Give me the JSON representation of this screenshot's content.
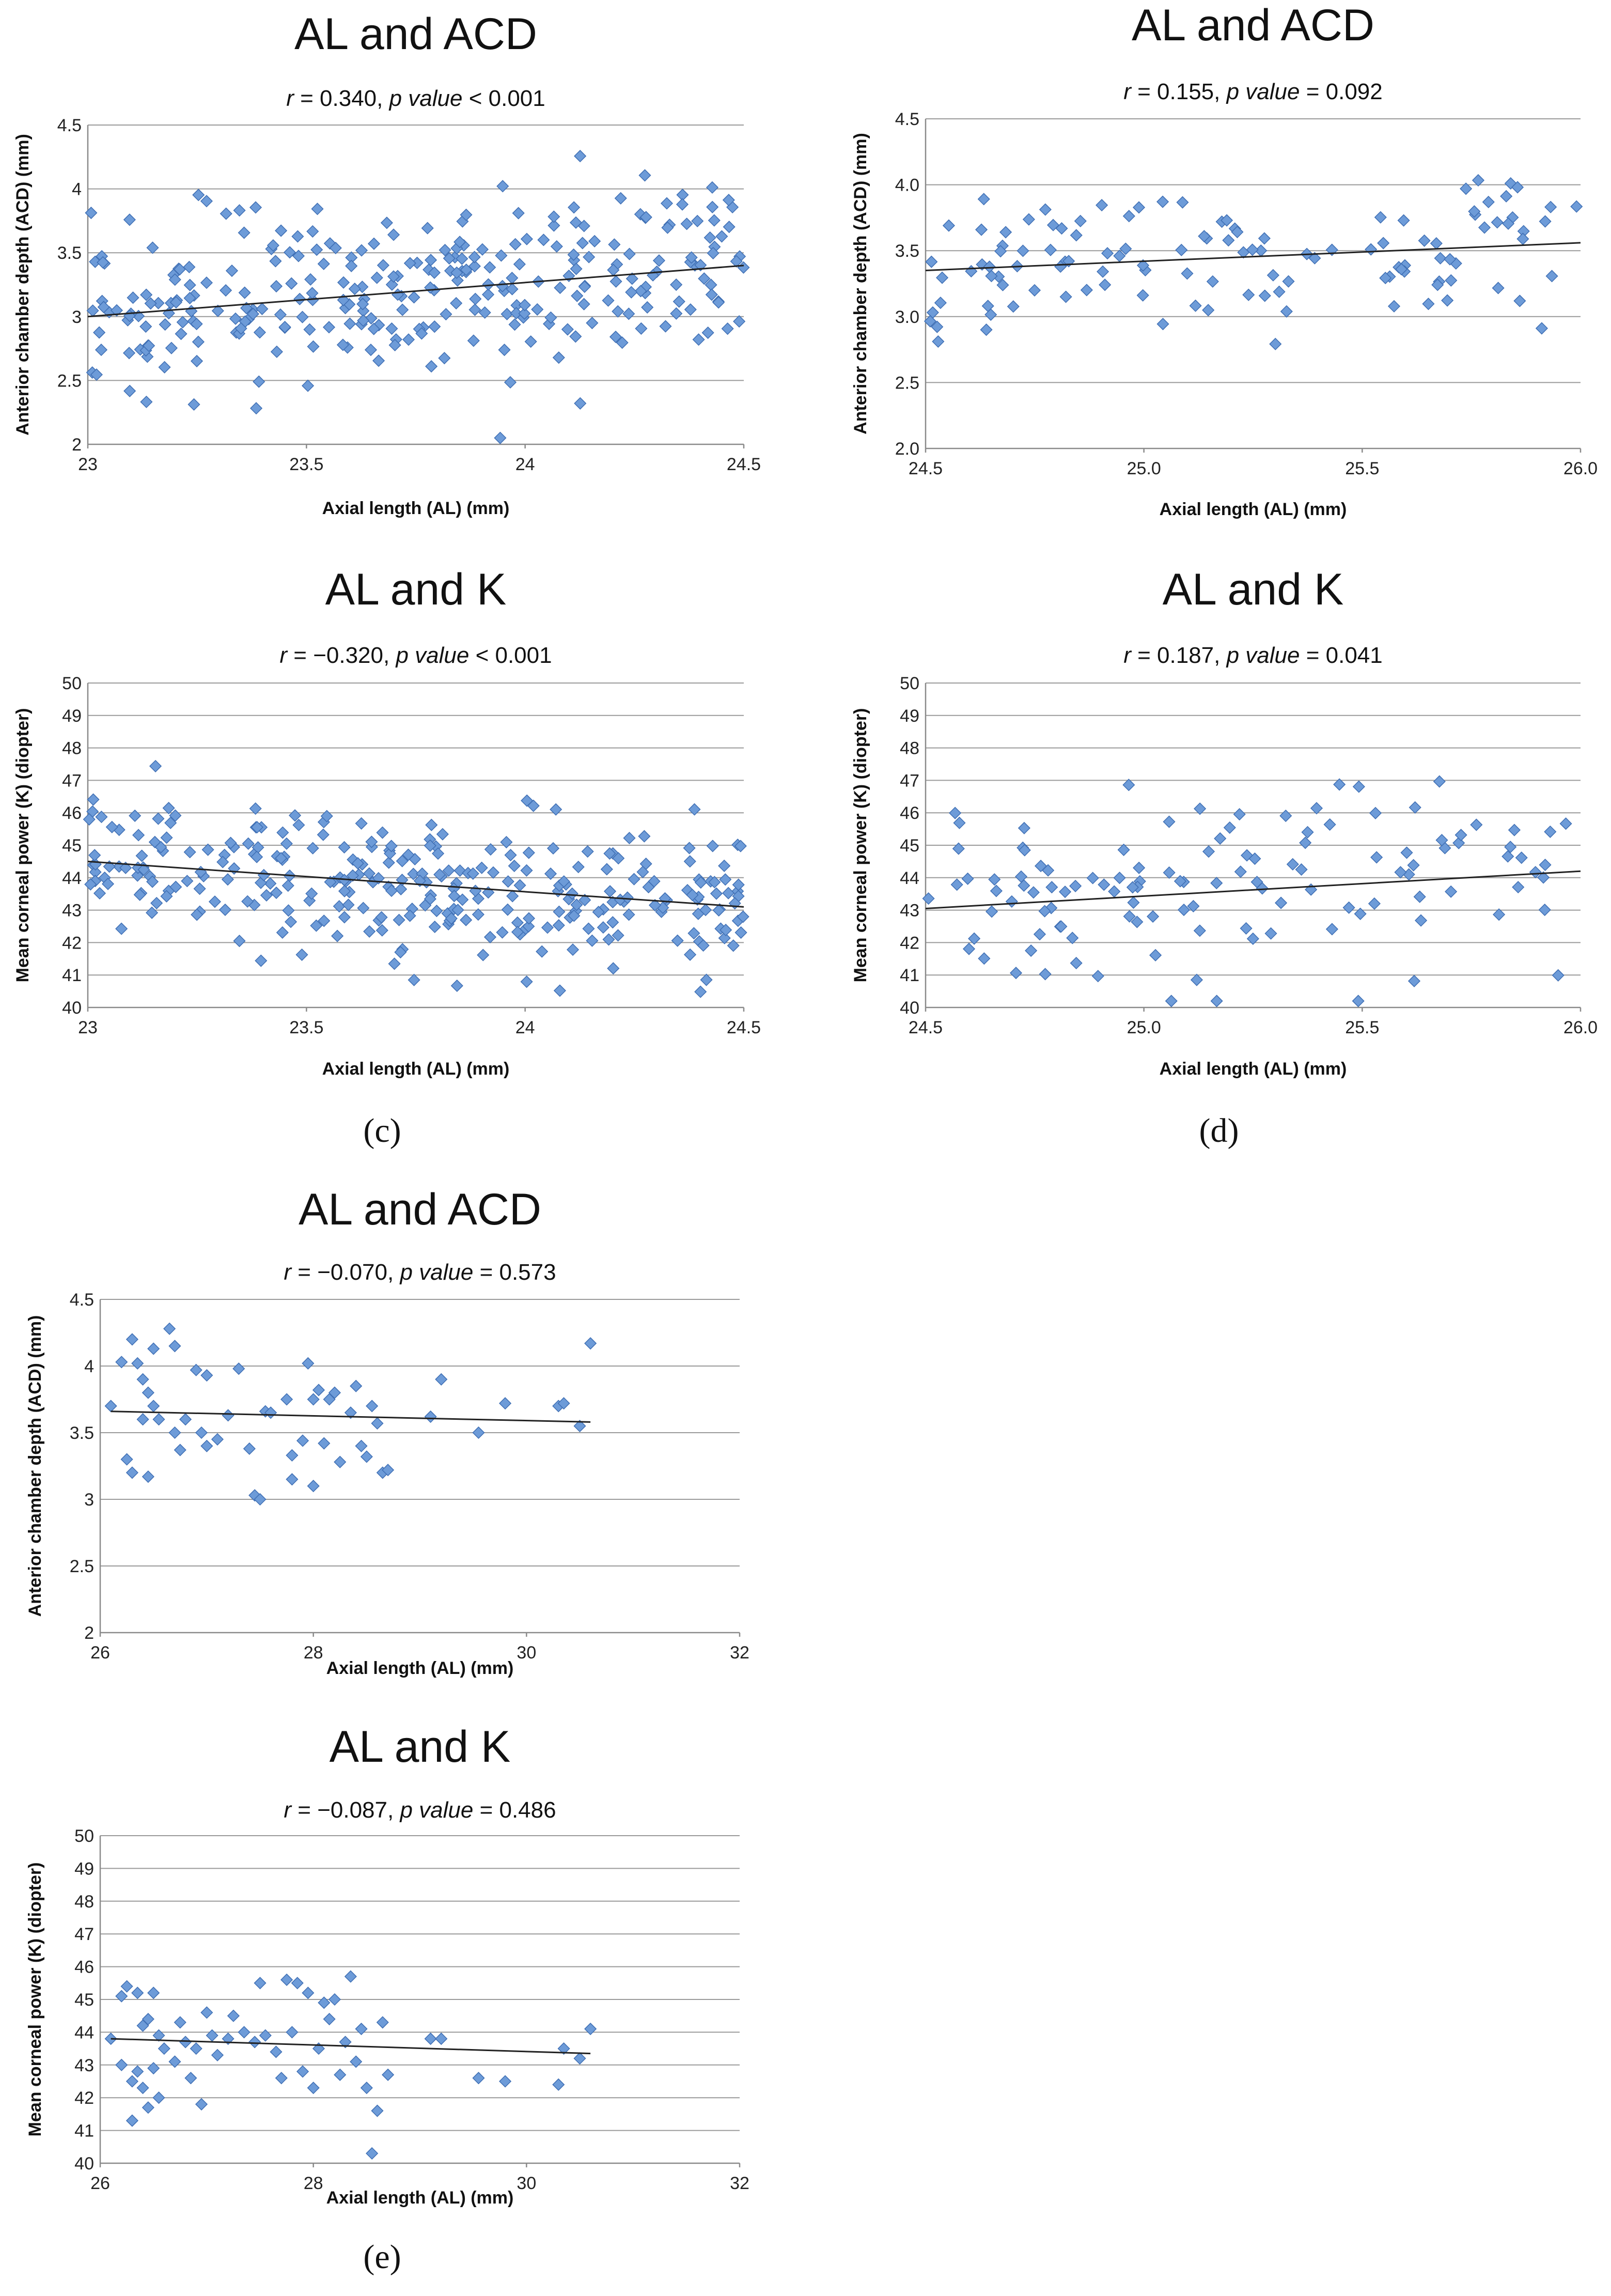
{
  "panel_labels": [
    "(c)",
    "(d)",
    "(e)"
  ],
  "chart_data": [
    {
      "type": "scatter",
      "title": "AL and ACD",
      "stats": {
        "r_label": "r",
        "r_text": " = 0.340,  ",
        "p_label": "p value",
        "p_text": " < 0.001"
      },
      "xlabel": "Axial length (AL) (mm)",
      "ylabel": "Anterior chamber depth (ACD) (mm)",
      "xlim": [
        23,
        24.5
      ],
      "ylim": [
        2,
        4.5
      ],
      "xticks": [
        23,
        23.5,
        24,
        24.5
      ],
      "xtick_labels": [
        "23",
        "23.5",
        "24",
        "24.5"
      ],
      "yticks": [
        2,
        2.5,
        3,
        3.5,
        4,
        4.5
      ],
      "ytick_labels": [
        "2",
        "2.5",
        "3",
        "3.5",
        "4",
        "4.5"
      ],
      "trendline": {
        "x": [
          23,
          24.5
        ],
        "y": [
          3.0,
          3.4
        ]
      },
      "n_points": 300,
      "seed": 11,
      "sd": 0.33
    },
    {
      "type": "scatter",
      "title": "AL and ACD",
      "stats": {
        "r_label": "r",
        "r_text": " = 0.155,  ",
        "p_label": "p value",
        "p_text": " = 0.092"
      },
      "xlabel": "Axial length (AL) (mm)",
      "ylabel": "Anterior chamber depth (ACD) (mm)",
      "xlim": [
        24.5,
        26.0
      ],
      "ylim": [
        2.0,
        4.5
      ],
      "xticks": [
        24.5,
        25.0,
        25.5,
        26.0
      ],
      "xtick_labels": [
        "24.5",
        "25.0",
        "25.5",
        "26.0"
      ],
      "yticks": [
        2.0,
        2.5,
        3.0,
        3.5,
        4.0,
        4.5
      ],
      "ytick_labels": [
        "2.0",
        "2.5",
        "3.0",
        "3.5",
        "4.0",
        "4.5"
      ],
      "trendline": {
        "x": [
          24.5,
          26.0
        ],
        "y": [
          3.35,
          3.56
        ]
      },
      "n_points": 120,
      "seed": 23,
      "sd": 0.3
    },
    {
      "type": "scatter",
      "title": "AL and K",
      "stats": {
        "r_label": "r",
        "r_text": " = −0.320,  ",
        "p_label": "p value",
        "p_text": " < 0.001"
      },
      "xlabel": "Axial length (AL) (mm)",
      "ylabel": "Mean corneal power (K) (diopter)",
      "xlim": [
        23,
        24.5
      ],
      "ylim": [
        40,
        50
      ],
      "xticks": [
        23,
        23.5,
        24,
        24.5
      ],
      "xtick_labels": [
        "23",
        "23.5",
        "24",
        "24.5"
      ],
      "yticks": [
        40,
        41,
        42,
        43,
        44,
        45,
        46,
        47,
        48,
        49,
        50
      ],
      "ytick_labels": [
        "40",
        "41",
        "42",
        "43",
        "44",
        "45",
        "46",
        "47",
        "48",
        "49",
        "50"
      ],
      "trendline": {
        "x": [
          23,
          24.5
        ],
        "y": [
          44.5,
          43.1
        ]
      },
      "n_points": 300,
      "seed": 37,
      "sd": 1.1
    },
    {
      "type": "scatter",
      "title": "AL and K",
      "stats": {
        "r_label": "r",
        "r_text": " = 0.187,  ",
        "p_label": "p value",
        "p_text": " = 0.041"
      },
      "xlabel": "Axial length (AL) (mm)",
      "ylabel": "Mean corneal power (K) (diopter)",
      "xlim": [
        24.5,
        26.0
      ],
      "ylim": [
        40,
        50
      ],
      "xticks": [
        24.5,
        25.0,
        25.5,
        26.0
      ],
      "xtick_labels": [
        "24.5",
        "25.0",
        "25.5",
        "26.0"
      ],
      "yticks": [
        40,
        41,
        42,
        43,
        44,
        45,
        46,
        47,
        48,
        49,
        50
      ],
      "ytick_labels": [
        "40",
        "41",
        "42",
        "43",
        "44",
        "45",
        "46",
        "47",
        "48",
        "49",
        "50"
      ],
      "trendline": {
        "x": [
          24.5,
          26.0
        ],
        "y": [
          43.05,
          44.2
        ]
      },
      "n_points": 120,
      "seed": 53,
      "sd": 1.45
    },
    {
      "type": "scatter",
      "title": "AL and ACD",
      "stats": {
        "r_label": "r",
        "r_text": " = −0.070,  ",
        "p_label": "p value",
        "p_text": " = 0.573"
      },
      "xlabel": "Axial length (AL) (mm)",
      "ylabel": "Anterior chamber depth (ACD) (mm)",
      "xlim": [
        26,
        32
      ],
      "ylim": [
        2,
        4.5
      ],
      "xticks": [
        26,
        28,
        30,
        32
      ],
      "xtick_labels": [
        "26",
        "28",
        "30",
        "32"
      ],
      "yticks": [
        2,
        2.5,
        3,
        3.5,
        4,
        4.5
      ],
      "ytick_labels": [
        "2",
        "2.5",
        "3",
        "3.5",
        "4",
        "4.5"
      ],
      "trendline": {
        "x": [
          26.1,
          30.6
        ],
        "y": [
          3.66,
          3.58
        ]
      },
      "points": [
        [
          26.1,
          3.7
        ],
        [
          26.2,
          4.03
        ],
        [
          26.25,
          3.3
        ],
        [
          26.3,
          4.2
        ],
        [
          26.3,
          3.2
        ],
        [
          26.35,
          4.02
        ],
        [
          26.4,
          3.9
        ],
        [
          26.4,
          3.6
        ],
        [
          26.45,
          3.8
        ],
        [
          26.45,
          3.17
        ],
        [
          26.5,
          4.13
        ],
        [
          26.5,
          3.7
        ],
        [
          26.55,
          3.6
        ],
        [
          26.65,
          4.28
        ],
        [
          26.7,
          4.15
        ],
        [
          26.7,
          3.5
        ],
        [
          26.75,
          3.37
        ],
        [
          26.8,
          3.6
        ],
        [
          26.9,
          3.97
        ],
        [
          26.95,
          3.5
        ],
        [
          27.0,
          3.93
        ],
        [
          27.0,
          3.4
        ],
        [
          27.1,
          3.45
        ],
        [
          27.2,
          3.63
        ],
        [
          27.3,
          3.98
        ],
        [
          27.4,
          3.38
        ],
        [
          27.45,
          3.03
        ],
        [
          27.5,
          3.0
        ],
        [
          27.55,
          3.66
        ],
        [
          27.6,
          3.65
        ],
        [
          27.75,
          3.75
        ],
        [
          27.8,
          3.33
        ],
        [
          27.8,
          3.15
        ],
        [
          27.9,
          3.44
        ],
        [
          27.95,
          4.02
        ],
        [
          28.0,
          3.75
        ],
        [
          28.0,
          3.1
        ],
        [
          28.05,
          3.82
        ],
        [
          28.1,
          3.42
        ],
        [
          28.15,
          3.75
        ],
        [
          28.2,
          3.8
        ],
        [
          28.25,
          3.28
        ],
        [
          28.35,
          3.65
        ],
        [
          28.4,
          3.85
        ],
        [
          28.45,
          3.4
        ],
        [
          28.5,
          3.32
        ],
        [
          28.55,
          3.7
        ],
        [
          28.6,
          3.57
        ],
        [
          28.65,
          3.2
        ],
        [
          28.7,
          3.22
        ],
        [
          29.1,
          3.62
        ],
        [
          29.2,
          3.9
        ],
        [
          29.55,
          3.5
        ],
        [
          29.8,
          3.72
        ],
        [
          30.3,
          3.7
        ],
        [
          30.35,
          3.72
        ],
        [
          30.5,
          3.55
        ],
        [
          30.6,
          4.17
        ]
      ]
    },
    {
      "type": "scatter",
      "title": "AL and K",
      "stats": {
        "r_label": "r",
        "r_text": " = −0.087,  ",
        "p_label": "p value",
        "p_text": " = 0.486"
      },
      "xlabel": "Axial length (AL) (mm)",
      "ylabel": "Mean corneal power (K) (diopter)",
      "xlim": [
        26,
        32
      ],
      "ylim": [
        40,
        50
      ],
      "xticks": [
        26,
        28,
        30,
        32
      ],
      "xtick_labels": [
        "26",
        "28",
        "30",
        "32"
      ],
      "yticks": [
        40,
        41,
        42,
        43,
        44,
        45,
        46,
        47,
        48,
        49,
        50
      ],
      "ytick_labels": [
        "40",
        "41",
        "42",
        "43",
        "44",
        "45",
        "46",
        "47",
        "48",
        "49",
        "50"
      ],
      "trendline": {
        "x": [
          26.1,
          30.6
        ],
        "y": [
          43.8,
          43.35
        ]
      },
      "points": [
        [
          26.1,
          43.8
        ],
        [
          26.2,
          45.1
        ],
        [
          26.2,
          43.0
        ],
        [
          26.25,
          45.4
        ],
        [
          26.3,
          42.5
        ],
        [
          26.3,
          41.3
        ],
        [
          26.35,
          45.2
        ],
        [
          26.35,
          42.8
        ],
        [
          26.4,
          44.2
        ],
        [
          26.4,
          42.3
        ],
        [
          26.45,
          44.4
        ],
        [
          26.45,
          41.7
        ],
        [
          26.5,
          45.2
        ],
        [
          26.5,
          42.9
        ],
        [
          26.55,
          43.9
        ],
        [
          26.55,
          42.0
        ],
        [
          26.6,
          43.5
        ],
        [
          26.7,
          43.1
        ],
        [
          26.75,
          44.3
        ],
        [
          26.8,
          43.7
        ],
        [
          26.85,
          42.6
        ],
        [
          26.9,
          43.5
        ],
        [
          26.95,
          41.8
        ],
        [
          27.0,
          44.6
        ],
        [
          27.05,
          43.9
        ],
        [
          27.1,
          43.3
        ],
        [
          27.2,
          43.8
        ],
        [
          27.25,
          44.5
        ],
        [
          27.35,
          44.0
        ],
        [
          27.45,
          43.7
        ],
        [
          27.5,
          45.5
        ],
        [
          27.55,
          43.9
        ],
        [
          27.65,
          43.4
        ],
        [
          27.7,
          42.6
        ],
        [
          27.75,
          45.6
        ],
        [
          27.8,
          44.0
        ],
        [
          27.85,
          45.5
        ],
        [
          27.9,
          42.8
        ],
        [
          27.95,
          45.2
        ],
        [
          28.0,
          42.3
        ],
        [
          28.05,
          43.5
        ],
        [
          28.1,
          44.9
        ],
        [
          28.15,
          44.4
        ],
        [
          28.2,
          45.0
        ],
        [
          28.25,
          42.7
        ],
        [
          28.3,
          43.7
        ],
        [
          28.35,
          45.7
        ],
        [
          28.4,
          43.1
        ],
        [
          28.45,
          44.1
        ],
        [
          28.5,
          42.3
        ],
        [
          28.55,
          40.3
        ],
        [
          28.6,
          41.6
        ],
        [
          28.65,
          44.3
        ],
        [
          28.7,
          42.7
        ],
        [
          29.1,
          43.8
        ],
        [
          29.2,
          43.8
        ],
        [
          29.55,
          42.6
        ],
        [
          29.8,
          42.5
        ],
        [
          30.3,
          42.4
        ],
        [
          30.35,
          43.5
        ],
        [
          30.5,
          43.2
        ],
        [
          30.6,
          44.1
        ]
      ]
    }
  ]
}
